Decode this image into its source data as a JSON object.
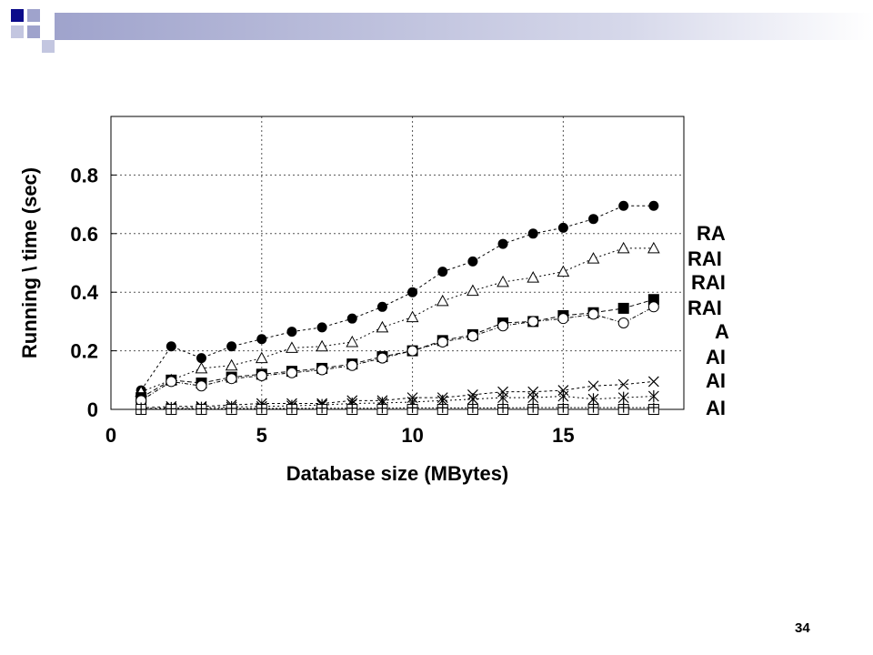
{
  "slide": {
    "page_number": "34"
  },
  "colors": {
    "header_dark": "#0b0b8a",
    "header_light": "#9fa3cc",
    "header_fade": "#e6e7f2"
  },
  "chart_data": {
    "type": "line",
    "title": "",
    "xlabel": "Database size (MBytes)",
    "ylabel": "Running \\ time (sec)",
    "xlim": [
      0,
      19
    ],
    "ylim": [
      0,
      1.0
    ],
    "x_ticks": [
      "0",
      "5",
      "10",
      "15"
    ],
    "y_ticks": [
      "0",
      "0.2",
      "0.4",
      "0.6",
      "0.8"
    ],
    "grid": true,
    "legend_position": "right (clipped)",
    "legend_entries": [
      "RA",
      "RAI",
      "RAI",
      "RAI",
      "A",
      "AI",
      "AI",
      "AI"
    ],
    "x": [
      1,
      2,
      3,
      4,
      5,
      6,
      7,
      8,
      9,
      10,
      11,
      12,
      13,
      14,
      15,
      16,
      17,
      18
    ],
    "series": [
      {
        "marker": "filled-circle",
        "values": [
          0.065,
          0.215,
          0.175,
          0.215,
          0.24,
          0.265,
          0.28,
          0.31,
          0.35,
          0.4,
          0.47,
          0.505,
          0.565,
          0.6,
          0.62,
          0.65,
          0.695,
          0.695
        ]
      },
      {
        "marker": "open-triangle",
        "values": [
          0.06,
          0.1,
          0.14,
          0.15,
          0.175,
          0.21,
          0.215,
          0.23,
          0.28,
          0.315,
          0.37,
          0.405,
          0.435,
          0.45,
          0.47,
          0.515,
          0.55,
          0.55
        ]
      },
      {
        "marker": "filled-square",
        "values": [
          0.04,
          0.1,
          0.09,
          0.11,
          0.12,
          0.13,
          0.14,
          0.155,
          0.18,
          0.2,
          0.235,
          0.255,
          0.295,
          0.3,
          0.32,
          0.33,
          0.345,
          0.375
        ]
      },
      {
        "marker": "open-circle",
        "values": [
          0.03,
          0.095,
          0.08,
          0.105,
          0.115,
          0.125,
          0.135,
          0.15,
          0.175,
          0.2,
          0.23,
          0.25,
          0.285,
          0.3,
          0.31,
          0.325,
          0.295,
          0.35
        ]
      },
      {
        "marker": "cross",
        "values": [
          0.005,
          0.01,
          0.01,
          0.015,
          0.02,
          0.02,
          0.02,
          0.03,
          0.03,
          0.04,
          0.04,
          0.05,
          0.06,
          0.06,
          0.065,
          0.08,
          0.085,
          0.095
        ]
      },
      {
        "marker": "star",
        "values": [
          0.003,
          0.005,
          0.006,
          0.008,
          0.01,
          0.012,
          0.015,
          0.02,
          0.022,
          0.025,
          0.03,
          0.035,
          0.04,
          0.04,
          0.045,
          0.035,
          0.04,
          0.045
        ]
      },
      {
        "marker": "open-square",
        "values": [
          0.0,
          0.0,
          0.0,
          0.0,
          0.0,
          0.0,
          0.0,
          0.0,
          0.0,
          0.0,
          0.0,
          0.0,
          0.0,
          0.0,
          0.0,
          0.0,
          0.0,
          0.0
        ]
      },
      {
        "marker": "plus",
        "values": [
          0.0,
          0.002,
          0.002,
          0.003,
          0.003,
          0.003,
          0.004,
          0.004,
          0.004,
          0.005,
          0.005,
          0.005,
          0.005,
          0.006,
          0.006,
          0.006,
          0.006,
          0.006
        ]
      }
    ]
  }
}
